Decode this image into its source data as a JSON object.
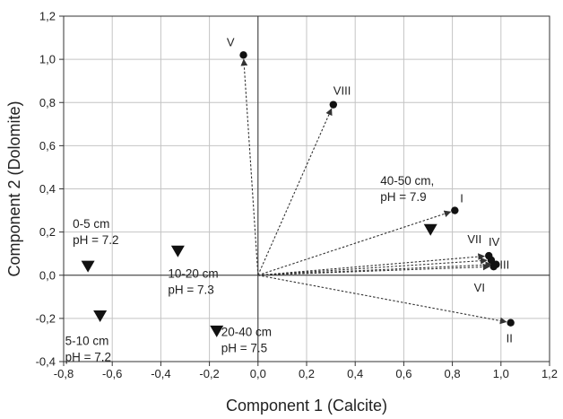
{
  "chart_data": {
    "type": "scatter",
    "title": "",
    "xlabel": "Component 1 (Calcite)",
    "ylabel": "Component 2 (Dolomite)",
    "xlim": [
      -0.8,
      1.2
    ],
    "ylim": [
      -0.4,
      1.2
    ],
    "x_ticks": [
      "-0,8",
      "-0,6",
      "-0,4",
      "-0,2",
      "0,0",
      "0,2",
      "0,4",
      "0,6",
      "0,8",
      "1,0",
      "1,2"
    ],
    "y_ticks": [
      "-0,4",
      "-0,2",
      "0,0",
      "0,2",
      "0,4",
      "0,6",
      "0,8",
      "1,0",
      "1,2"
    ],
    "grid": true,
    "series": [
      {
        "marker": "circle",
        "vectors_from_origin": true,
        "points": [
          {
            "label": "I",
            "x": 0.81,
            "y": 0.3
          },
          {
            "label": "II",
            "x": 1.04,
            "y": -0.22
          },
          {
            "label": "III",
            "x": 0.98,
            "y": 0.05
          },
          {
            "label": "IV",
            "x": 0.96,
            "y": 0.07
          },
          {
            "label": "V",
            "x": -0.06,
            "y": 1.02
          },
          {
            "label": "VI",
            "x": 0.97,
            "y": 0.04
          },
          {
            "label": "VII",
            "x": 0.95,
            "y": 0.09
          },
          {
            "label": "VIII",
            "x": 0.31,
            "y": 0.79
          }
        ]
      },
      {
        "marker": "triangle-down",
        "points": [
          {
            "label": "0-5 cm",
            "sublabel": "pH = 7.2",
            "x": -0.7,
            "y": 0.04
          },
          {
            "label": "5-10 cm",
            "sublabel": "pH = 7.2",
            "x": -0.65,
            "y": -0.19
          },
          {
            "label": "10-20 cm",
            "sublabel": "pH = 7.3",
            "x": -0.33,
            "y": 0.11
          },
          {
            "label": "20-40 cm",
            "sublabel": "pH = 7.5",
            "x": -0.17,
            "y": -0.26
          },
          {
            "label": "40-50 cm,",
            "sublabel": "pH = 7.9",
            "x": 0.71,
            "y": 0.21
          }
        ]
      }
    ]
  }
}
